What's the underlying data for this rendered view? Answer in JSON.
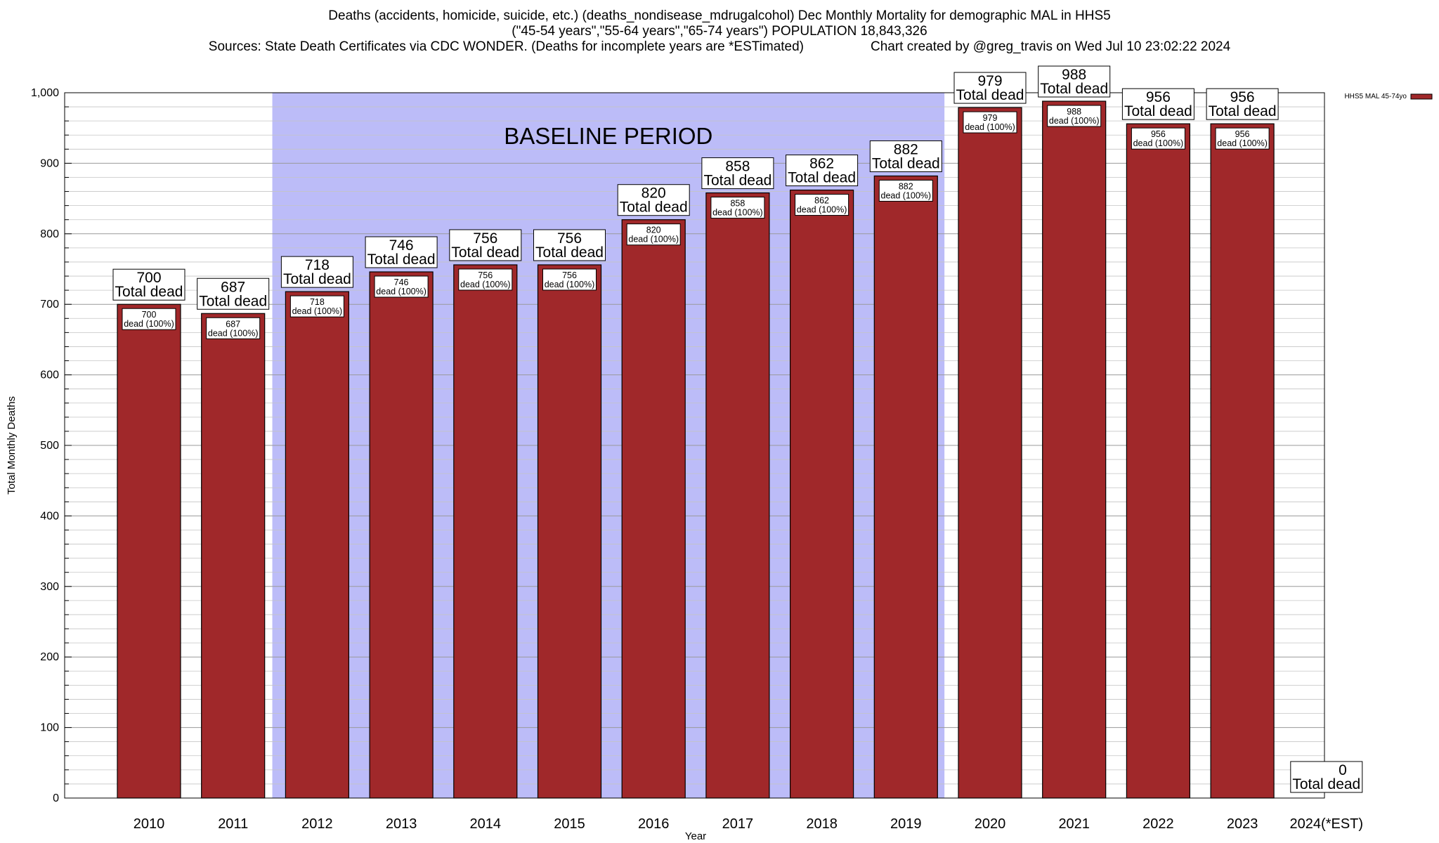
{
  "header": {
    "line1": "Deaths (accidents, homicide, suicide, etc.) (deaths_nondisease_mdrugalcohol) Dec Monthly Mortality for demographic MAL in HHS5",
    "line2": "(\"45-54 years\",\"55-64 years\",\"65-74 years\") POPULATION 18,843,326",
    "line3_sources": "Sources: State Death Certificates via CDC WONDER. (Deaths for incomplete years are *ESTimated)",
    "line3_credit": "Chart created by @greg_travis on Wed Jul 10 23:02:22 2024"
  },
  "chart_data": {
    "type": "bar",
    "title": "Deaths (accidents, homicide, suicide, etc.) (deaths_nondisease_mdrugalcohol) Dec Monthly Mortality for demographic MAL in HHS5",
    "xlabel": "Year",
    "ylabel": "Total Monthly Deaths",
    "ylim": [
      0,
      1000
    ],
    "yticks": [
      0,
      100,
      200,
      300,
      400,
      500,
      600,
      700,
      800,
      900,
      1000
    ],
    "ytick_labels": [
      "0",
      "100",
      "200",
      "300",
      "400",
      "500",
      "600",
      "700",
      "800",
      "900",
      "1,000"
    ],
    "grid": true,
    "categories": [
      "2010",
      "2011",
      "2012",
      "2013",
      "2014",
      "2015",
      "2016",
      "2017",
      "2018",
      "2019",
      "2020",
      "2021",
      "2022",
      "2023",
      "2024(*EST)"
    ],
    "series": [
      {
        "name": "HHS5 MAL 45-74yo",
        "color": "#a0282a",
        "values": [
          700,
          687,
          718,
          746,
          756,
          756,
          820,
          858,
          862,
          882,
          979,
          988,
          956,
          956,
          0
        ]
      }
    ],
    "top_label_suffix": "Total dead",
    "inner_label_suffix": "dead (100%)",
    "baseline_period": {
      "label": "BASELINE PERIOD",
      "start": "2012",
      "end": "2019",
      "color": "#bcbcf8"
    },
    "legend": {
      "position": "top-right",
      "entries": [
        "HHS5 MAL 45-74yo"
      ]
    }
  }
}
